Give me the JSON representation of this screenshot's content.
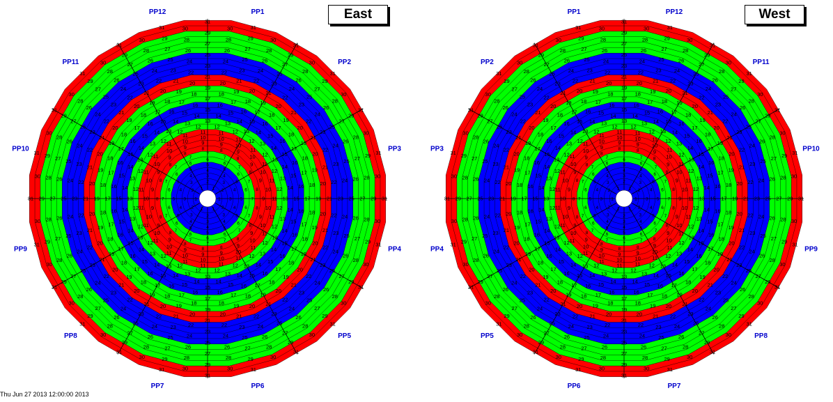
{
  "wheels": [
    {
      "title": "East",
      "sector_labels": [
        "PP1",
        "PP2",
        "PP3",
        "PP4",
        "PP5",
        "PP6",
        "PP7",
        "PP8",
        "PP9",
        "PP10",
        "PP11",
        "PP12"
      ],
      "label_direction": "clockwise"
    },
    {
      "title": "West",
      "sector_labels": [
        "PP12",
        "PP11",
        "PP10",
        "PP9",
        "PP8",
        "PP7",
        "PP6",
        "PP5",
        "PP4",
        "PP3",
        "PP2",
        "PP1"
      ],
      "label_direction": "clockwise"
    }
  ],
  "ring_numbers": [
    1,
    2,
    3,
    4,
    5,
    6,
    7,
    8,
    9,
    10,
    11,
    12,
    13,
    14,
    15,
    16,
    17,
    18,
    19,
    20,
    21,
    22,
    23,
    24,
    25,
    26,
    27,
    28,
    29,
    30,
    31
  ],
  "band_colors": {
    "red": "#ff0000",
    "green": "#00ff00",
    "blue": "#0000ff"
  },
  "label_color": "#0000cc",
  "footer_text": "Thu Jun 27 2013 12:00:00 2013"
}
